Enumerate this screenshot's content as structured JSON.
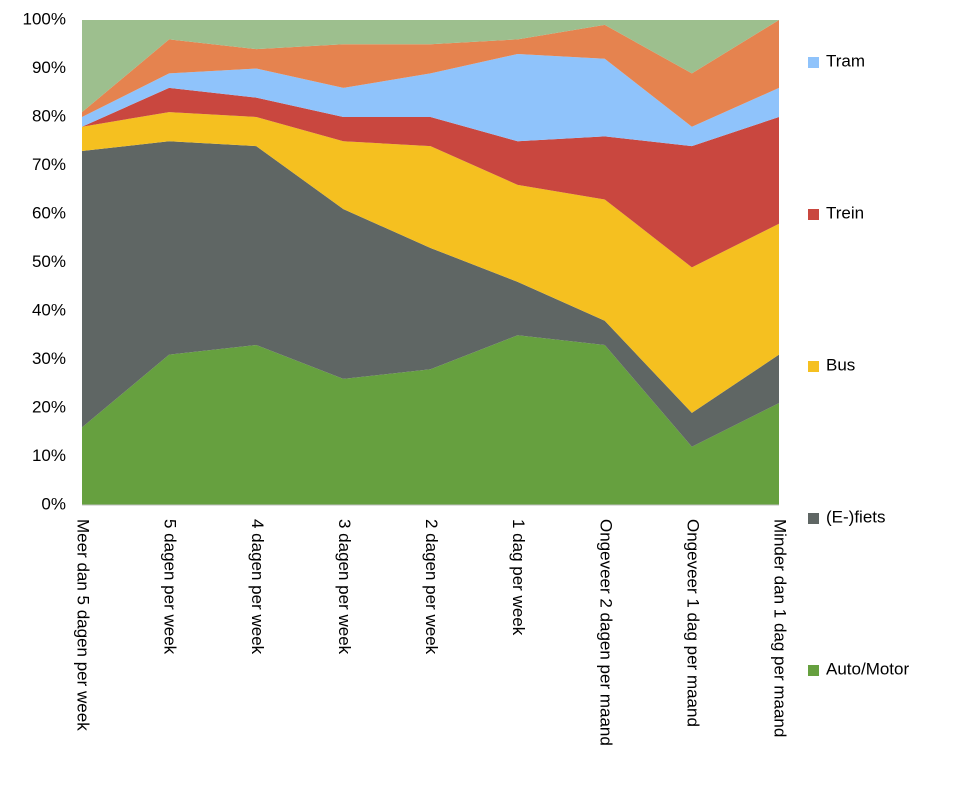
{
  "chart_data": {
    "type": "stacked_area",
    "categories": [
      "Meer dan 5 dagen per week",
      "5 dagen per week",
      "4 dagen per week",
      "3 dagen per week",
      "2 dagen per week",
      "1 dag per week",
      "Ongeveer 2 dagen per maand",
      "Ongeveer 1 dag per maand",
      "Minder dan 1 dag per maand"
    ],
    "series": [
      {
        "name": "Auto/Motor",
        "color": "#66a03f",
        "values": [
          16,
          31,
          33,
          26,
          28,
          35,
          33,
          12,
          21
        ]
      },
      {
        "name": "(E-)fiets",
        "color": "#5f6664",
        "values": [
          57,
          44,
          41,
          35,
          25,
          11,
          5,
          7,
          10
        ]
      },
      {
        "name": "Bus",
        "color": "#f5c020",
        "values": [
          5,
          6,
          6,
          14,
          21,
          20,
          25,
          30,
          27
        ]
      },
      {
        "name": "Trein",
        "color": "#c9473f",
        "values": [
          0,
          5,
          4,
          5,
          6,
          9,
          13,
          25,
          22
        ]
      },
      {
        "name": "Tram",
        "color": "#8fc3fb",
        "values": [
          2,
          3,
          6,
          6,
          9,
          18,
          16,
          4,
          6
        ]
      },
      {
        "color": "#e5834f",
        "values": [
          1,
          7,
          4,
          9,
          6,
          3,
          7,
          11,
          14
        ]
      },
      {
        "color": "#9dbf8e",
        "values": [
          19,
          4,
          6,
          5,
          5,
          4,
          1,
          11,
          0
        ]
      }
    ],
    "ylim": [
      0,
      100
    ],
    "yticks": [
      {
        "value": 0,
        "label": "0%"
      },
      {
        "value": 10,
        "label": "10%"
      },
      {
        "value": 20,
        "label": "20%"
      },
      {
        "value": 30,
        "label": "30%"
      },
      {
        "value": 40,
        "label": "40%"
      },
      {
        "value": 50,
        "label": "50%"
      },
      {
        "value": 60,
        "label": "60%"
      },
      {
        "value": 70,
        "label": "70%"
      },
      {
        "value": 80,
        "label": "80%"
      },
      {
        "value": 90,
        "label": "90%"
      },
      {
        "value": 100,
        "label": "100%"
      }
    ],
    "legend": "right"
  }
}
